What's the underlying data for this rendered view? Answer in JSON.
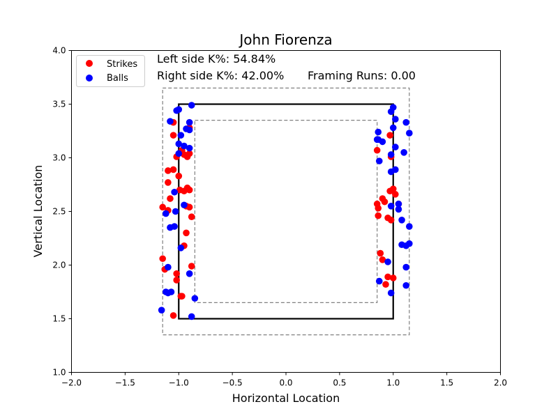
{
  "chart_data": {
    "type": "scatter",
    "title": "John Fiorenza",
    "xlabel": "Horizontal Location",
    "ylabel": "Vertical Location",
    "xlim": [
      -2.0,
      2.0
    ],
    "ylim": [
      1.0,
      4.0
    ],
    "xticks": [
      -2.0,
      -1.5,
      -1.0,
      -0.5,
      0.0,
      0.5,
      1.0,
      1.5,
      2.0
    ],
    "yticks": [
      1.0,
      1.5,
      2.0,
      2.5,
      3.0,
      3.5,
      4.0
    ],
    "xtick_labels": [
      "−2.0",
      "−1.5",
      "−1.0",
      "−0.5",
      "0.0",
      "0.5",
      "1.0",
      "1.5",
      "2.0"
    ],
    "ytick_labels": [
      "1.0",
      "1.5",
      "2.0",
      "2.5",
      "3.0",
      "3.5",
      "4.0"
    ],
    "grid": false,
    "legend_position": "top-left",
    "annotations": {
      "left_k": "Left side K%: 54.84%",
      "right_k": "Right side K%: 42.00%",
      "framing": "Framing Runs: 0.00"
    },
    "zones": {
      "strike_zone": {
        "x": [
          -1.0,
          1.0
        ],
        "y": [
          1.5,
          3.5
        ]
      },
      "outer_zone": {
        "x": [
          -1.15,
          1.15
        ],
        "y": [
          1.35,
          3.65
        ]
      },
      "inner_zone": {
        "x": [
          -0.85,
          0.85
        ],
        "y": [
          1.65,
          3.35
        ]
      }
    },
    "series": [
      {
        "name": "Strikes",
        "color": "#ff0000",
        "points": [
          [
            -1.05,
            3.33
          ],
          [
            -1.05,
            3.21
          ],
          [
            -0.97,
            3.07
          ],
          [
            -1.02,
            3.01
          ],
          [
            -0.95,
            3.03
          ],
          [
            -0.9,
            3.04
          ],
          [
            -0.92,
            3.01
          ],
          [
            -0.9,
            3.28
          ],
          [
            -1.1,
            2.88
          ],
          [
            -1.05,
            2.89
          ],
          [
            -1.0,
            2.83
          ],
          [
            -1.1,
            2.77
          ],
          [
            -0.99,
            2.7
          ],
          [
            -0.95,
            2.69
          ],
          [
            -0.92,
            2.72
          ],
          [
            -0.9,
            2.7
          ],
          [
            -1.08,
            2.62
          ],
          [
            -1.15,
            2.54
          ],
          [
            -1.1,
            2.51
          ],
          [
            -0.93,
            2.55
          ],
          [
            -0.9,
            2.54
          ],
          [
            -0.88,
            2.45
          ],
          [
            -0.93,
            2.3
          ],
          [
            -0.95,
            2.18
          ],
          [
            -1.15,
            2.06
          ],
          [
            -1.13,
            1.96
          ],
          [
            -1.02,
            1.92
          ],
          [
            -1.02,
            1.86
          ],
          [
            -0.88,
            1.99
          ],
          [
            -0.97,
            1.71
          ],
          [
            -0.98,
            1.71
          ],
          [
            -1.05,
            1.53
          ],
          [
            0.97,
            3.21
          ],
          [
            0.98,
            3.01
          ],
          [
            0.85,
            3.07
          ],
          [
            0.97,
            2.69
          ],
          [
            1.0,
            2.71
          ],
          [
            1.02,
            2.66
          ],
          [
            0.9,
            2.62
          ],
          [
            0.92,
            2.59
          ],
          [
            0.85,
            2.57
          ],
          [
            0.86,
            2.53
          ],
          [
            1.05,
            2.57
          ],
          [
            0.86,
            2.46
          ],
          [
            0.95,
            2.44
          ],
          [
            0.98,
            2.42
          ],
          [
            0.9,
            2.05
          ],
          [
            0.88,
            2.11
          ],
          [
            0.95,
            1.89
          ],
          [
            0.93,
            1.82
          ],
          [
            1.0,
            1.88
          ]
        ]
      },
      {
        "name": "Balls",
        "color": "#0000ff",
        "points": [
          [
            -1.0,
            3.45
          ],
          [
            -0.88,
            3.49
          ],
          [
            -1.02,
            3.44
          ],
          [
            -1.08,
            3.34
          ],
          [
            -0.9,
            3.33
          ],
          [
            -0.93,
            3.27
          ],
          [
            -0.9,
            3.26
          ],
          [
            -0.98,
            3.21
          ],
          [
            -1.0,
            3.13
          ],
          [
            -0.95,
            3.11
          ],
          [
            -0.9,
            3.09
          ],
          [
            -1.0,
            3.04
          ],
          [
            -1.04,
            2.68
          ],
          [
            -1.03,
            2.5
          ],
          [
            -0.95,
            2.56
          ],
          [
            -1.12,
            2.48
          ],
          [
            -1.08,
            2.35
          ],
          [
            -1.04,
            2.36
          ],
          [
            -0.98,
            2.16
          ],
          [
            -1.1,
            1.98
          ],
          [
            -0.9,
            1.92
          ],
          [
            -1.12,
            1.75
          ],
          [
            -1.1,
            1.74
          ],
          [
            -1.07,
            1.75
          ],
          [
            -0.85,
            1.69
          ],
          [
            -1.16,
            1.58
          ],
          [
            -0.88,
            1.52
          ],
          [
            1.0,
            3.47
          ],
          [
            0.98,
            3.43
          ],
          [
            1.02,
            3.36
          ],
          [
            0.86,
            3.24
          ],
          [
            0.85,
            3.17
          ],
          [
            0.86,
            3.17
          ],
          [
            0.9,
            3.15
          ],
          [
            1.0,
            3.28
          ],
          [
            1.12,
            3.33
          ],
          [
            1.15,
            3.23
          ],
          [
            1.02,
            3.1
          ],
          [
            1.1,
            3.05
          ],
          [
            0.98,
            3.03
          ],
          [
            0.87,
            2.97
          ],
          [
            1.02,
            2.89
          ],
          [
            0.98,
            2.87
          ],
          [
            1.05,
            2.57
          ],
          [
            0.98,
            2.55
          ],
          [
            1.05,
            2.52
          ],
          [
            1.08,
            2.42
          ],
          [
            1.15,
            2.36
          ],
          [
            1.08,
            2.19
          ],
          [
            1.12,
            2.18
          ],
          [
            1.15,
            2.2
          ],
          [
            0.95,
            2.03
          ],
          [
            1.12,
            1.98
          ],
          [
            0.87,
            1.85
          ],
          [
            1.12,
            1.81
          ],
          [
            0.98,
            1.74
          ]
        ]
      }
    ]
  }
}
